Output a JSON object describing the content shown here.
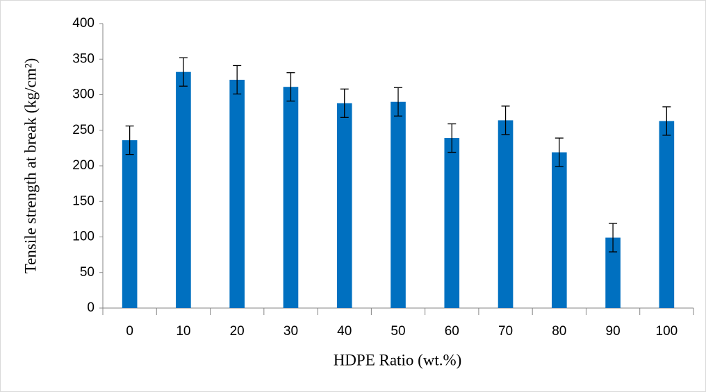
{
  "chart_data": {
    "type": "bar",
    "x_label": "HDPE Ratio (wt.%)",
    "y_label": "Tensile strength at break (kg/cm²)",
    "categories": [
      "0",
      "10",
      "20",
      "30",
      "40",
      "50",
      "60",
      "70",
      "80",
      "90",
      "100"
    ],
    "values": [
      236,
      332,
      321,
      311,
      288,
      290,
      239,
      264,
      219,
      99,
      263
    ],
    "errors": [
      20,
      20,
      20,
      20,
      20,
      20,
      20,
      20,
      20,
      20,
      20
    ],
    "color": "#0070c0",
    "error_color": "#000000",
    "ylim": [
      0,
      400
    ],
    "yticks": [
      0,
      50,
      100,
      150,
      200,
      250,
      300,
      350,
      400
    ],
    "grid": false
  }
}
